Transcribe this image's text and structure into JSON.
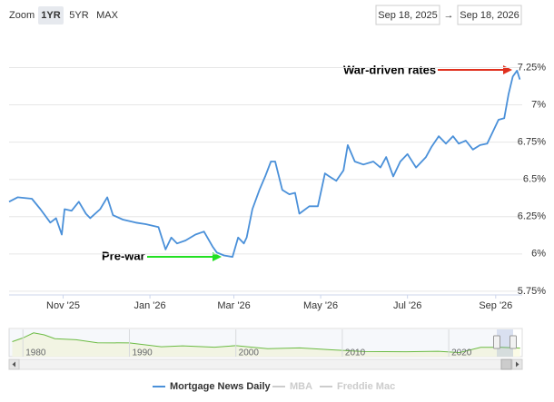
{
  "zoom": {
    "label": "Zoom",
    "buttons": [
      "1YR",
      "5YR",
      "MAX"
    ],
    "selected": 0
  },
  "range": {
    "from": "Sep 18, 2025",
    "separator": "→",
    "to": "Sep 18, 2026"
  },
  "chart_data": {
    "type": "line",
    "x": [
      "2025-09-24",
      "2025-09-30",
      "2025-10-10",
      "2025-10-16",
      "2025-10-23",
      "2025-10-27",
      "2025-10-31",
      "2025-11-02",
      "2025-11-07",
      "2025-11-12",
      "2025-11-17",
      "2025-11-20",
      "2025-11-27",
      "2025-12-02",
      "2025-12-06",
      "2025-12-13",
      "2025-12-22",
      "2025-12-29",
      "2026-01-07",
      "2026-01-12",
      "2026-01-16",
      "2026-01-20",
      "2026-01-26",
      "2026-02-02",
      "2026-02-08",
      "2026-02-14",
      "2026-02-17",
      "2026-02-22",
      "2026-02-28",
      "2026-03-04",
      "2026-03-08",
      "2026-03-10",
      "2026-03-14",
      "2026-03-19",
      "2026-03-23",
      "2026-03-27",
      "2026-03-30",
      "2026-04-04",
      "2026-04-09",
      "2026-04-13",
      "2026-04-16",
      "2026-04-23",
      "2026-04-29",
      "2026-05-04",
      "2026-05-07",
      "2026-05-12",
      "2026-05-17",
      "2026-05-20",
      "2026-05-25",
      "2026-05-31",
      "2026-06-07",
      "2026-06-12",
      "2026-06-16",
      "2026-06-21",
      "2026-06-26",
      "2026-07-01",
      "2026-07-07",
      "2026-07-14",
      "2026-07-18",
      "2026-07-23",
      "2026-07-28",
      "2026-08-02",
      "2026-08-06",
      "2026-08-11",
      "2026-08-16",
      "2026-08-21",
      "2026-08-26",
      "2026-08-30",
      "2026-09-03",
      "2026-09-07",
      "2026-09-10",
      "2026-09-13",
      "2026-09-16",
      "2026-09-18"
    ],
    "series": [
      {
        "name": "Mortgage News Daily",
        "color": "#4a90d9",
        "values": [
          6.35,
          6.38,
          6.37,
          6.3,
          6.21,
          6.24,
          6.13,
          6.3,
          6.29,
          6.35,
          6.27,
          6.24,
          6.3,
          6.38,
          6.26,
          6.23,
          6.21,
          6.2,
          6.18,
          6.03,
          6.11,
          6.07,
          6.09,
          6.13,
          6.15,
          6.05,
          6.01,
          5.99,
          5.98,
          6.11,
          6.07,
          6.11,
          6.3,
          6.43,
          6.52,
          6.62,
          6.62,
          6.43,
          6.4,
          6.41,
          6.27,
          6.32,
          6.32,
          6.54,
          6.52,
          6.49,
          6.56,
          6.73,
          6.62,
          6.6,
          6.62,
          6.58,
          6.65,
          6.52,
          6.62,
          6.67,
          6.58,
          6.65,
          6.72,
          6.79,
          6.74,
          6.79,
          6.74,
          6.76,
          6.7,
          6.73,
          6.74,
          6.82,
          6.9,
          6.91,
          7.07,
          7.19,
          7.23,
          7.17
        ]
      }
    ],
    "hidden_series": [
      {
        "name": "MBA",
        "color": "#cccccc"
      },
      {
        "name": "Freddie Mac",
        "color": "#cccccc"
      }
    ],
    "xlim": [
      "2025-09-24",
      "2026-09-19"
    ],
    "xticks": [
      {
        "value": "2025-11-01",
        "label": "Nov '25"
      },
      {
        "value": "2026-01-01",
        "label": "Jan '26"
      },
      {
        "value": "2026-03-01",
        "label": "Mar '26"
      },
      {
        "value": "2026-05-01",
        "label": "May '26"
      },
      {
        "value": "2026-07-01",
        "label": "Jul '26"
      },
      {
        "value": "2026-09-01",
        "label": "Sep '26"
      }
    ],
    "ylim": [
      5.725,
      7.46
    ],
    "yticks": [
      {
        "value": 5.75,
        "label": "5.75%"
      },
      {
        "value": 6,
        "label": "6%"
      },
      {
        "value": 6.25,
        "label": "6.25%"
      },
      {
        "value": 6.5,
        "label": "6.5%"
      },
      {
        "value": 6.75,
        "label": "6.75%"
      },
      {
        "value": 7,
        "label": "7%"
      },
      {
        "value": 7.25,
        "label": "7.25%"
      }
    ],
    "grid": true,
    "annotations": [
      {
        "text": "War-driven rates",
        "color": "#e0301e"
      },
      {
        "text": "Pre-war",
        "color": "#22e022"
      }
    ]
  },
  "navigator": {
    "color": "#6cbf3c",
    "x": [
      1979,
      1980,
      1981,
      1982,
      1983,
      1985,
      1987,
      1990,
      1993,
      1995,
      1998,
      2000,
      2003,
      2006,
      2009,
      2012,
      2016,
      2019,
      2021,
      2023,
      2025,
      2026.7
    ],
    "values": [
      11,
      13.7,
      17.5,
      16,
      13.2,
      12.4,
      10.2,
      10.1,
      7.3,
      7.9,
      6.9,
      8.1,
      5.8,
      6.4,
      5.0,
      3.7,
      3.6,
      3.9,
      3.0,
      6.8,
      6.8,
      6.3
    ],
    "xlim": [
      1978.7,
      2026.9
    ],
    "ylim": [
      0,
      20
    ],
    "xticks": [
      1980,
      1990,
      2000,
      2010,
      2020
    ]
  }
}
